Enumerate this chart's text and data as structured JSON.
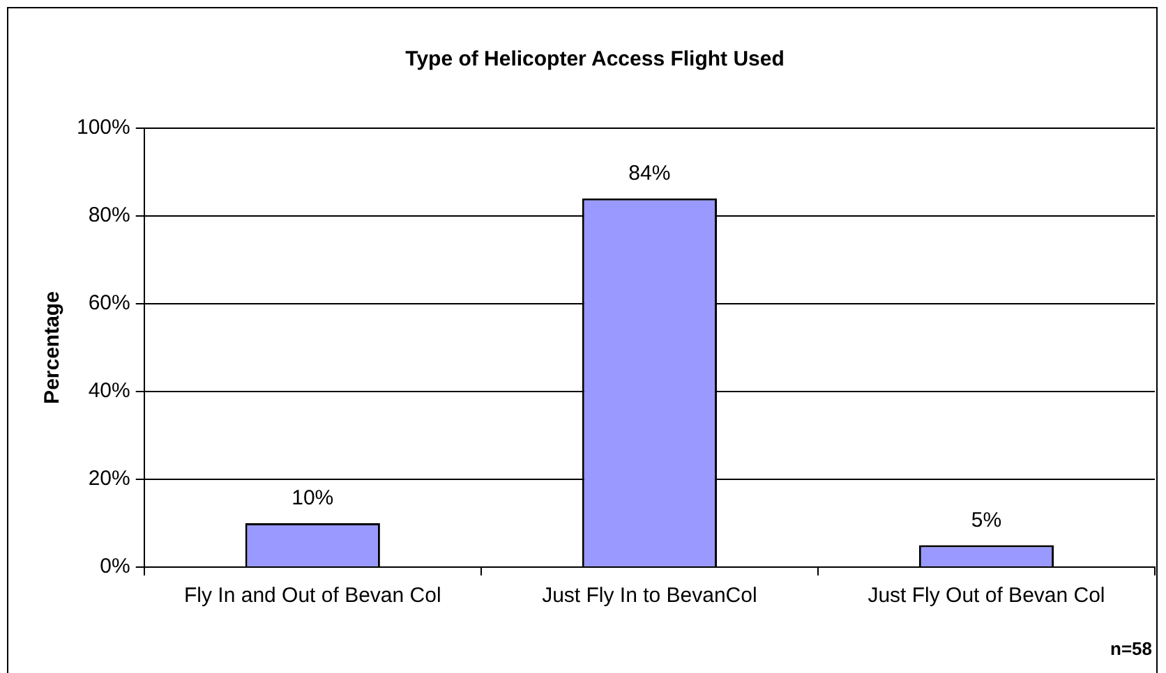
{
  "chart_data": {
    "type": "bar",
    "title": "Type of Helicopter Access Flight Used",
    "ylabel": "Percentage",
    "categories": [
      "Fly In and Out of Bevan Col",
      "Just Fly In to BevanCol",
      "Just Fly Out of Bevan Col"
    ],
    "values": [
      10,
      84,
      5
    ],
    "value_labels": [
      "10%",
      "84%",
      "5%"
    ],
    "color": "#9999ff",
    "ylim": [
      0,
      100
    ],
    "yticks": [
      {
        "value": 0,
        "label": "0%"
      },
      {
        "value": 20,
        "label": "20%"
      },
      {
        "value": 40,
        "label": "40%"
      },
      {
        "value": 60,
        "label": "60%"
      },
      {
        "value": 80,
        "label": "80%"
      },
      {
        "value": 100,
        "label": "100%"
      }
    ],
    "grid": "y",
    "legend": false,
    "annotations": [
      "n=58"
    ]
  }
}
